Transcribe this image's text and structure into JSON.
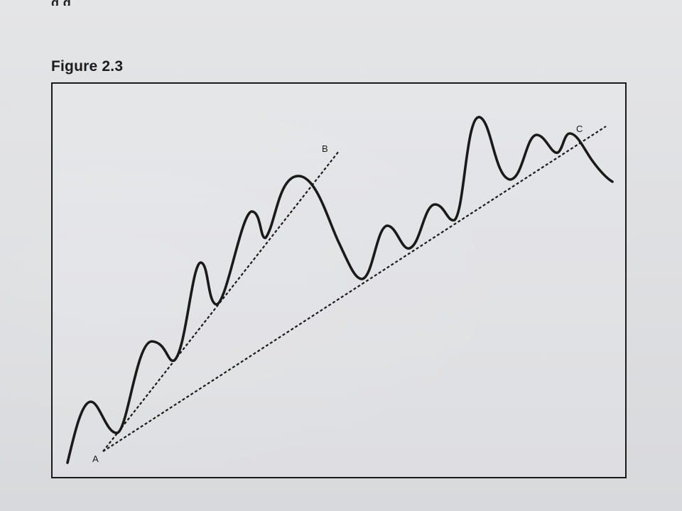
{
  "page": {
    "top_text_fragment": "q                    g",
    "figure_title": "Figure 2.3"
  },
  "diagram": {
    "point_labels": {
      "a": "A",
      "b": "B",
      "c": "C"
    },
    "colors": {
      "ink": "#1a1a1a",
      "paper": "#e2e3e6"
    },
    "description_elements": [
      "price-wave-curve",
      "trendline-a-b",
      "trendline-a-c"
    ]
  }
}
